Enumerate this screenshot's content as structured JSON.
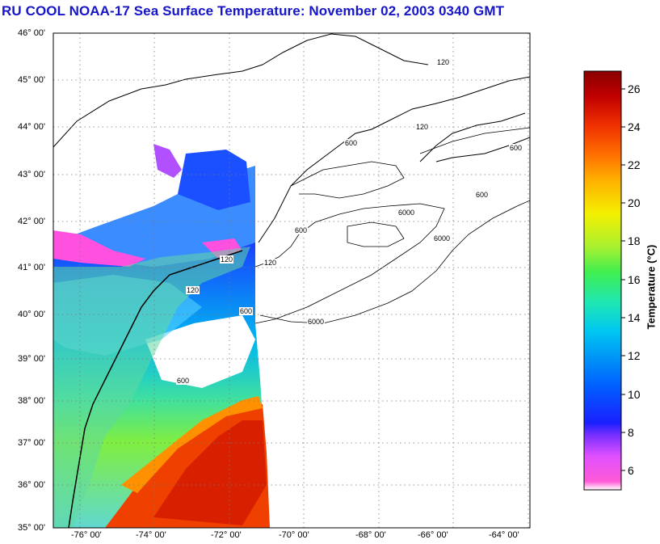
{
  "title": "RU COOL  NOAA-17  Sea Surface Temperature:  November 02, 2003 0340 GMT",
  "map": {
    "lat_labels": [
      "46° 00'",
      "45° 00'",
      "44° 00'",
      "43° 00'",
      "42° 00'",
      "41° 00'",
      "40° 00'",
      "39° 00'",
      "38° 00'",
      "37° 00'",
      "36° 00'",
      "35° 00'"
    ],
    "lon_labels": [
      "-76° 00'",
      "-74° 00'",
      "-72° 00'",
      "-70° 00'",
      "-68° 00'",
      "-66° 00'",
      "-64° 00'"
    ],
    "contour_labels": [
      "120",
      "600",
      "6000",
      "6000",
      "6000",
      "600",
      "600",
      "600",
      "120",
      "120",
      "120",
      "600",
      "600",
      "120"
    ],
    "grid": "dotted"
  },
  "colorbar": {
    "title": "Temperature (°C)",
    "labels": [
      "26",
      "24",
      "22",
      "20",
      "18",
      "16",
      "14",
      "12",
      "10",
      "8",
      "6"
    ],
    "range": [
      5,
      27
    ],
    "colors": [
      "#ffffff",
      "#ff5ad6",
      "#cc40ff",
      "#7a30ff",
      "#1a20ff",
      "#0070ff",
      "#00c0f0",
      "#20e8b0",
      "#40ee50",
      "#a8f030",
      "#f4f000",
      "#ffb000",
      "#ff7000",
      "#f03000",
      "#c80000",
      "#8a0000"
    ]
  }
}
